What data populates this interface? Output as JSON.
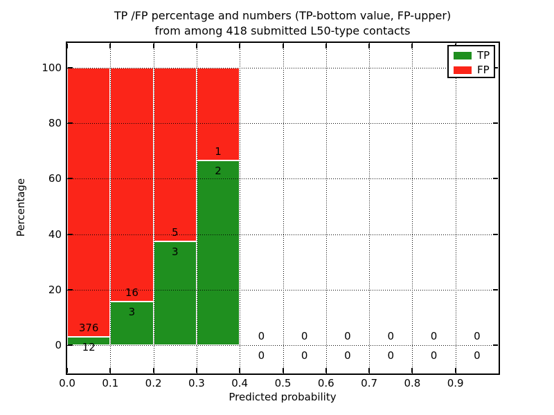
{
  "chart_data": {
    "type": "bar",
    "stacked": true,
    "normalized_to_percent": true,
    "title_lines": [
      "TP /FP percentage and numbers (TP-bottom value, FP-upper)",
      "from among 418 submitted L50-type contacts"
    ],
    "xlabel": "Predicted probability",
    "ylabel": "Percentage",
    "xlim": [
      0.0,
      1.0
    ],
    "ylim": [
      -10.2,
      109.0
    ],
    "xtick_values": [
      0.0,
      0.1,
      0.2,
      0.3,
      0.4,
      0.5,
      0.6,
      0.7,
      0.8,
      0.9
    ],
    "xtick_labels": [
      "0.0",
      "0.1",
      "0.2",
      "0.3",
      "0.4",
      "0.5",
      "0.6",
      "0.7",
      "0.8",
      "0.9"
    ],
    "ytick_values": [
      0,
      20,
      40,
      60,
      80,
      100
    ],
    "ytick_labels": [
      "0",
      "20",
      "40",
      "60",
      "80",
      "100"
    ],
    "grid": "dotted",
    "colors": {
      "tp": "#1f8f1f",
      "fp": "#fb2519"
    },
    "legend": {
      "location": "upper right",
      "entries": [
        {
          "label": "TP",
          "color": "#1f8f1f"
        },
        {
          "label": "FP",
          "color": "#fb2519"
        }
      ]
    },
    "categories": [
      "0.0-0.1",
      "0.1-0.2",
      "0.2-0.3",
      "0.3-0.4",
      "0.4-0.5",
      "0.5-0.6",
      "0.6-0.7",
      "0.7-0.8",
      "0.8-0.9",
      "0.9-1.0"
    ],
    "series": [
      {
        "name": "TP",
        "values": [
          12,
          3,
          3,
          2,
          0,
          0,
          0,
          0,
          0,
          0
        ]
      },
      {
        "name": "FP",
        "values": [
          376,
          16,
          5,
          1,
          0,
          0,
          0,
          0,
          0,
          0
        ]
      }
    ],
    "bins": [
      {
        "range": [
          0.0,
          0.1
        ],
        "tp": 12,
        "fp": 376
      },
      {
        "range": [
          0.1,
          0.2
        ],
        "tp": 3,
        "fp": 16
      },
      {
        "range": [
          0.2,
          0.3
        ],
        "tp": 3,
        "fp": 5
      },
      {
        "range": [
          0.3,
          0.4
        ],
        "tp": 2,
        "fp": 1
      },
      {
        "range": [
          0.4,
          0.5
        ],
        "tp": 0,
        "fp": 0
      },
      {
        "range": [
          0.5,
          0.6
        ],
        "tp": 0,
        "fp": 0
      },
      {
        "range": [
          0.6,
          0.7
        ],
        "tp": 0,
        "fp": 0
      },
      {
        "range": [
          0.7,
          0.8
        ],
        "tp": 0,
        "fp": 0
      },
      {
        "range": [
          0.8,
          0.9
        ],
        "tp": 0,
        "fp": 0
      },
      {
        "range": [
          0.9,
          1.0
        ],
        "tp": 0,
        "fp": 0
      }
    ]
  }
}
